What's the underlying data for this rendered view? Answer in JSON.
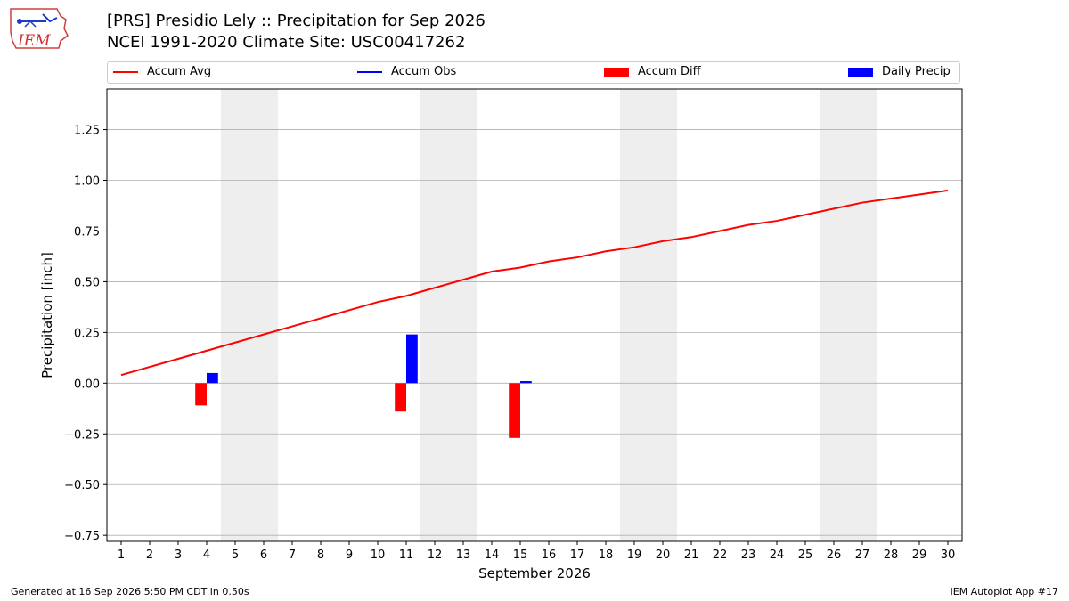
{
  "header": {
    "title_line1": "[PRS] Presidio Lely :: Precipitation for Sep 2026",
    "title_line2": "NCEI 1991-2020 Climate Site: USC00417262",
    "logo_text": "IEM"
  },
  "footer": {
    "generated": "Generated at 16 Sep 2026 5:50 PM CDT in 0.50s",
    "app": "IEM Autoplot App #17"
  },
  "colors": {
    "accum_avg": "#ff0000",
    "accum_obs": "#0000ff",
    "accum_diff": "#ff0000",
    "daily_precip": "#0000ff",
    "weekend_shade": "#eeeeee",
    "grid": "#b0b0b0"
  },
  "chart_data": {
    "type": "bar",
    "xlabel": "September 2026",
    "ylabel": "Precipitation [inch]",
    "xlim": [
      0.5,
      30.5
    ],
    "ylim": [
      -0.78,
      1.45
    ],
    "x": [
      1,
      2,
      3,
      4,
      5,
      6,
      7,
      8,
      9,
      10,
      11,
      12,
      13,
      14,
      15,
      16,
      17,
      18,
      19,
      20,
      21,
      22,
      23,
      24,
      25,
      26,
      27,
      28,
      29,
      30
    ],
    "yticks": [
      -0.75,
      -0.5,
      -0.25,
      0.0,
      0.25,
      0.5,
      0.75,
      1.0,
      1.25
    ],
    "ytick_labels": [
      "−0.75",
      "−0.50",
      "−0.25",
      "0.00",
      "0.25",
      "0.50",
      "0.75",
      "1.00",
      "1.25"
    ],
    "grid": "horizontal",
    "legend_placement": "top",
    "legend": [
      "Accum Avg",
      "Accum Obs",
      "Accum Diff",
      "Daily Precip"
    ],
    "weekends": [
      [
        5,
        6
      ],
      [
        12,
        13
      ],
      [
        19,
        20
      ],
      [
        26,
        27
      ]
    ],
    "series": [
      {
        "name": "Accum Avg",
        "type": "line",
        "values": [
          0.04,
          0.08,
          0.12,
          0.16,
          0.2,
          0.24,
          0.28,
          0.32,
          0.36,
          0.4,
          0.43,
          0.47,
          0.51,
          0.55,
          0.57,
          0.6,
          0.62,
          0.65,
          0.67,
          0.7,
          0.72,
          0.75,
          0.78,
          0.8,
          0.83,
          0.86,
          0.89,
          0.91,
          0.93,
          0.95
        ]
      },
      {
        "name": "Accum Diff",
        "type": "bar",
        "points": [
          [
            4,
            -0.11
          ],
          [
            11,
            -0.14
          ],
          [
            15,
            -0.27
          ]
        ]
      },
      {
        "name": "Daily Precip",
        "type": "bar",
        "points": [
          [
            4,
            0.05
          ],
          [
            11,
            0.24
          ],
          [
            15,
            0.01
          ]
        ]
      }
    ]
  }
}
